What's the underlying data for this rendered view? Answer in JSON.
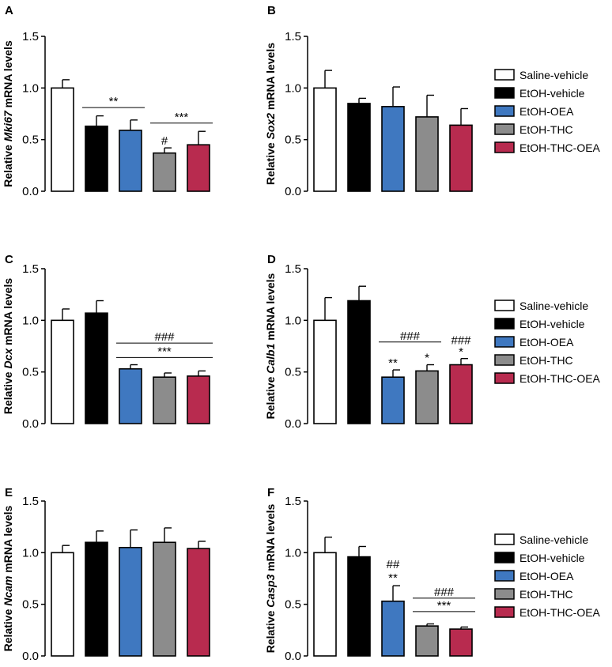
{
  "legend_colors": [
    "#ffffff",
    "#000000",
    "#3f78c0",
    "#8c8c8c",
    "#b82b4f"
  ],
  "legend_labels": [
    "Saline-vehicle",
    "EtOH-vehicle",
    "EtOH-OEA",
    "EtOH-THC",
    "EtOH-THC-OEA"
  ],
  "chart_data": [
    {
      "type": "bar",
      "panel": "A",
      "gene": "Mki67",
      "ylabel_prefix": "Relative",
      "ylabel_suffix": "mRNA levels",
      "ylim": [
        0,
        1.5
      ],
      "yticks": [
        "0.0",
        "0.5",
        "1.0",
        "1.5"
      ],
      "categories": [
        "Saline-vehicle",
        "EtOH-vehicle",
        "EtOH-OEA",
        "EtOH-THC",
        "EtOH-THC-OEA"
      ],
      "values": [
        1.0,
        0.63,
        0.59,
        0.37,
        0.45
      ],
      "errors": [
        0.08,
        0.1,
        0.1,
        0.05,
        0.13
      ],
      "annotations": [
        {
          "text": "#",
          "bar": 3,
          "y": 0.45
        },
        {
          "text": "**",
          "line": [
            1,
            2
          ],
          "y": 0.81
        },
        {
          "text": "***",
          "line": [
            3,
            4
          ],
          "y": 0.66
        }
      ]
    },
    {
      "type": "bar",
      "panel": "B",
      "gene": "Sox2",
      "ylabel_prefix": "Relative",
      "ylabel_suffix": "mRNA levels",
      "ylim": [
        0,
        1.5
      ],
      "yticks": [
        "0.0",
        "0.5",
        "1.0",
        "1.5"
      ],
      "categories": [
        "Saline-vehicle",
        "EtOH-vehicle",
        "EtOH-OEA",
        "EtOH-THC",
        "EtOH-THC-OEA"
      ],
      "values": [
        1.0,
        0.85,
        0.82,
        0.72,
        0.64
      ],
      "errors": [
        0.17,
        0.05,
        0.19,
        0.21,
        0.16
      ],
      "annotations": []
    },
    {
      "type": "bar",
      "panel": "C",
      "gene": "Dcx",
      "ylabel_prefix": "Relative",
      "ylabel_suffix": "mRNA levels",
      "ylim": [
        0,
        1.5
      ],
      "yticks": [
        "0.0",
        "0.5",
        "1.0",
        "1.5"
      ],
      "categories": [
        "Saline-vehicle",
        "EtOH-vehicle",
        "EtOH-OEA",
        "EtOH-THC",
        "EtOH-THC-OEA"
      ],
      "values": [
        1.0,
        1.07,
        0.53,
        0.45,
        0.46
      ],
      "errors": [
        0.11,
        0.12,
        0.04,
        0.04,
        0.05
      ],
      "annotations": [
        {
          "text": "###",
          "line": [
            2,
            4
          ],
          "y": 0.78
        },
        {
          "text": "***",
          "line": [
            2,
            4
          ],
          "y": 0.64
        }
      ]
    },
    {
      "type": "bar",
      "panel": "D",
      "gene": "Calb1",
      "ylabel_prefix": "Relative",
      "ylabel_suffix": "mRNA levels",
      "ylim": [
        0,
        1.5
      ],
      "yticks": [
        "0.0",
        "0.5",
        "1.0",
        "1.5"
      ],
      "categories": [
        "Saline-vehicle",
        "EtOH-vehicle",
        "EtOH-OEA",
        "EtOH-THC",
        "EtOH-THC-OEA"
      ],
      "values": [
        1.0,
        1.19,
        0.45,
        0.51,
        0.57
      ],
      "errors": [
        0.22,
        0.14,
        0.07,
        0.06,
        0.06
      ],
      "annotations": [
        {
          "text": "###",
          "line": [
            2,
            3
          ],
          "y": 0.79
        },
        {
          "text": "**",
          "bar": 2,
          "y": 0.55
        },
        {
          "text": "*",
          "bar": 3,
          "y": 0.6
        },
        {
          "text": "###",
          "bar": 4,
          "y": 0.77
        },
        {
          "text": "*",
          "bar": 4,
          "y": 0.66
        }
      ]
    },
    {
      "type": "bar",
      "panel": "E",
      "gene": "Ncam",
      "ylabel_prefix": "Relative",
      "ylabel_suffix": "mRNA levels",
      "ylim": [
        0,
        1.5
      ],
      "yticks": [
        "0.0",
        "0.5",
        "1.0",
        "1.5"
      ],
      "categories": [
        "Saline-vehicle",
        "EtOH-vehicle",
        "EtOH-OEA",
        "EtOH-THC",
        "EtOH-THC-OEA"
      ],
      "values": [
        1.0,
        1.1,
        1.05,
        1.1,
        1.04
      ],
      "errors": [
        0.07,
        0.11,
        0.17,
        0.14,
        0.07
      ],
      "annotations": []
    },
    {
      "type": "bar",
      "panel": "F",
      "gene": "Casp3",
      "ylabel_prefix": "Relative",
      "ylabel_suffix": "mRNA levels",
      "ylim": [
        0,
        1.5
      ],
      "yticks": [
        "0.0",
        "0.5",
        "1.0",
        "1.5"
      ],
      "categories": [
        "Saline-vehicle",
        "EtOH-vehicle",
        "EtOH-OEA",
        "EtOH-THC",
        "EtOH-THC-OEA"
      ],
      "values": [
        1.0,
        0.96,
        0.53,
        0.29,
        0.26
      ],
      "errors": [
        0.15,
        0.1,
        0.15,
        0.02,
        0.02
      ],
      "annotations": [
        {
          "text": "##",
          "bar": 2,
          "y": 0.85
        },
        {
          "text": "**",
          "bar": 2,
          "y": 0.72
        },
        {
          "text": "###",
          "line": [
            3,
            4
          ],
          "y": 0.56
        },
        {
          "text": "***",
          "line": [
            3,
            4
          ],
          "y": 0.43
        }
      ]
    }
  ]
}
